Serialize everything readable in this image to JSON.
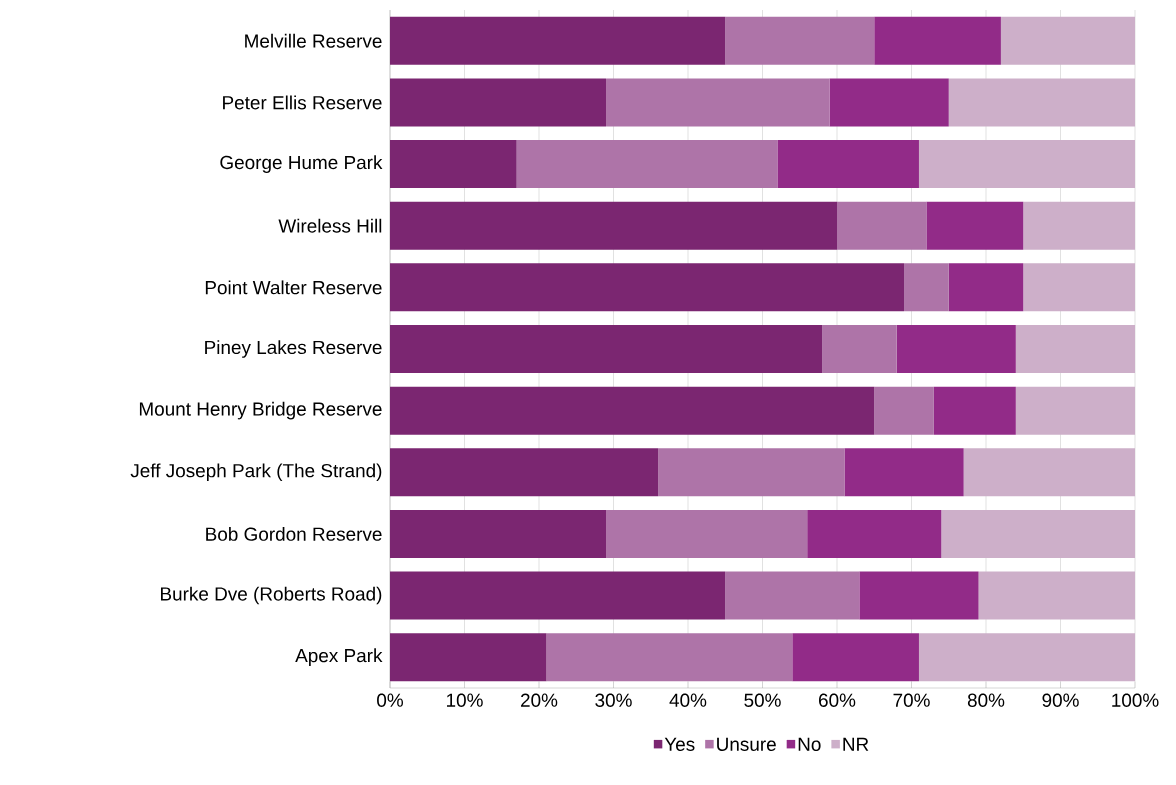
{
  "chart_data": {
    "type": "bar",
    "orientation": "horizontal",
    "stacked": true,
    "categories": [
      "Melville Reserve",
      "Peter Ellis Reserve",
      "George Hume Park",
      "Wireless Hill",
      "Point Walter Reserve",
      "Piney Lakes Reserve",
      "Mount Henry Bridge Reserve",
      "Jeff Joseph Park (The Strand)",
      "Bob Gordon Reserve",
      "Burke Dve (Roberts Road)",
      "Apex Park"
    ],
    "series": [
      {
        "name": "Yes",
        "color": "#7b2671",
        "values": [
          45,
          29,
          17,
          60,
          69,
          58,
          65,
          36,
          29,
          45,
          21
        ]
      },
      {
        "name": "Unsure",
        "color": "#ae74a8",
        "values": [
          20,
          30,
          35,
          12,
          6,
          10,
          8,
          25,
          27,
          18,
          33
        ]
      },
      {
        "name": "No",
        "color": "#922b88",
        "values": [
          17,
          16,
          19,
          13,
          10,
          16,
          11,
          16,
          18,
          16,
          17
        ]
      },
      {
        "name": "NR",
        "color": "#cdafc9",
        "values": [
          18,
          25,
          29,
          15,
          15,
          16,
          16,
          23,
          26,
          21,
          29
        ]
      }
    ],
    "xlim": [
      0,
      100
    ],
    "xticks": [
      {
        "value": 0,
        "label": "0%"
      },
      {
        "value": 10,
        "label": "10%"
      },
      {
        "value": 20,
        "label": "20%"
      },
      {
        "value": 30,
        "label": "30%"
      },
      {
        "value": 40,
        "label": "40%"
      },
      {
        "value": 50,
        "label": "50%"
      },
      {
        "value": 60,
        "label": "60%"
      },
      {
        "value": 70,
        "label": "70%"
      },
      {
        "value": 80,
        "label": "80%"
      },
      {
        "value": 90,
        "label": "90%"
      },
      {
        "value": 100,
        "label": "100%"
      }
    ],
    "grid": "x",
    "legend": "bottom"
  }
}
